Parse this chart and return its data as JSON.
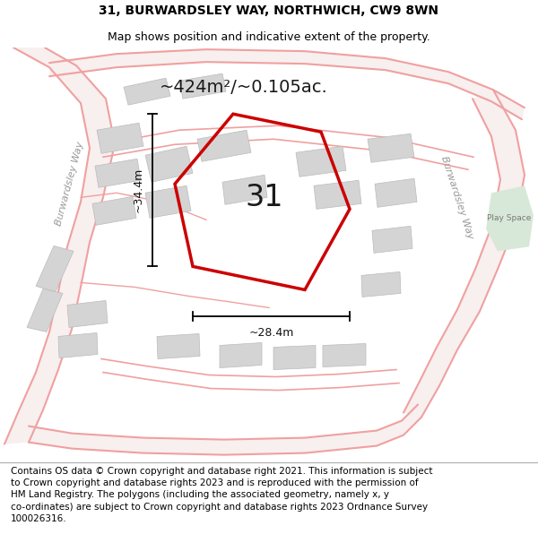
{
  "title_line1": "31, BURWARDSLEY WAY, NORTHWICH, CW9 8WN",
  "title_line2": "Map shows position and indicative extent of the property.",
  "footer_text": "Contains OS data © Crown copyright and database right 2021. This information is subject to Crown copyright and database rights 2023 and is reproduced with the permission of HM Land Registry. The polygons (including the associated geometry, namely x, y co-ordinates) are subject to Crown copyright and database rights 2023 Ordnance Survey 100026316.",
  "area_label": "~424m²/~0.105ac.",
  "width_label": "~28.4m",
  "height_label": "~34.4m",
  "plot_number": "31",
  "street_label1": "Burwardsley Way",
  "street_label2": "Burwardsley Way",
  "play_space_label": "Play Space",
  "road_stroke": "#f0a0a0",
  "building_fill": "#d4d4d4",
  "building_stroke": "#bbbbbb",
  "green_fill": "#d8e8d8",
  "red_plot_stroke": "#cc0000",
  "title_fontsize": 10,
  "subtitle_fontsize": 9,
  "footer_fontsize": 7.5
}
